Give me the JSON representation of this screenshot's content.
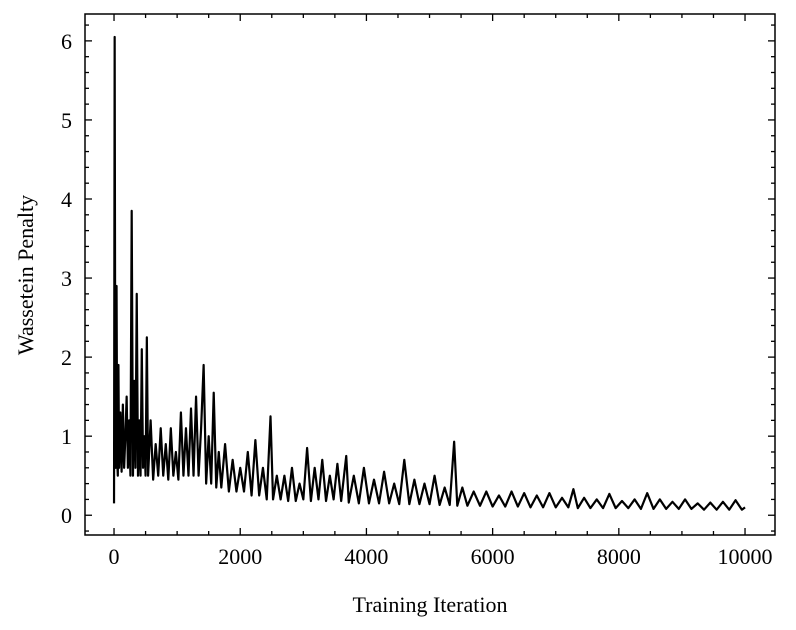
{
  "chart_data": {
    "type": "line",
    "xlabel": "Training Iteration",
    "ylabel": "Wassetein Penalty",
    "color": "#000000",
    "x": [
      0,
      10,
      20,
      30,
      40,
      50,
      60,
      70,
      80,
      100,
      120,
      140,
      160,
      180,
      200,
      220,
      240,
      260,
      280,
      300,
      320,
      340,
      360,
      380,
      400,
      420,
      440,
      460,
      480,
      500,
      520,
      540,
      580,
      620,
      660,
      700,
      740,
      780,
      820,
      860,
      900,
      940,
      980,
      1020,
      1060,
      1100,
      1140,
      1180,
      1220,
      1260,
      1300,
      1340,
      1380,
      1420,
      1460,
      1500,
      1540,
      1580,
      1620,
      1660,
      1700,
      1760,
      1820,
      1880,
      1940,
      2000,
      2060,
      2120,
      2180,
      2240,
      2300,
      2360,
      2420,
      2480,
      2520,
      2580,
      2640,
      2700,
      2760,
      2820,
      2880,
      2940,
      3000,
      3060,
      3120,
      3180,
      3240,
      3300,
      3360,
      3420,
      3480,
      3540,
      3600,
      3680,
      3720,
      3800,
      3880,
      3960,
      4040,
      4120,
      4200,
      4280,
      4360,
      4440,
      4520,
      4600,
      4680,
      4760,
      4840,
      4920,
      5000,
      5080,
      5160,
      5240,
      5320,
      5390,
      5440,
      5520,
      5600,
      5700,
      5800,
      5900,
      6000,
      6100,
      6200,
      6300,
      6400,
      6500,
      6600,
      6700,
      6800,
      6900,
      7000,
      7100,
      7200,
      7280,
      7350,
      7450,
      7550,
      7650,
      7750,
      7850,
      7950,
      8050,
      8150,
      8250,
      8350,
      8450,
      8550,
      8650,
      8750,
      8850,
      8950,
      9050,
      9150,
      9250,
      9350,
      9450,
      9550,
      9650,
      9750,
      9850,
      9950,
      10000
    ],
    "values": [
      0.15,
      6.05,
      1.2,
      0.6,
      2.9,
      0.7,
      0.5,
      1.9,
      0.6,
      1.3,
      0.55,
      1.4,
      0.6,
      1.0,
      1.5,
      0.6,
      1.2,
      0.5,
      3.85,
      0.5,
      1.7,
      0.6,
      2.8,
      0.5,
      1.2,
      0.5,
      2.1,
      0.6,
      1.0,
      0.5,
      2.25,
      0.5,
      1.2,
      0.45,
      0.9,
      0.5,
      1.1,
      0.5,
      0.9,
      0.45,
      1.1,
      0.5,
      0.8,
      0.45,
      1.3,
      0.5,
      1.1,
      0.5,
      1.35,
      0.5,
      1.5,
      0.5,
      1.1,
      1.9,
      0.4,
      1.0,
      0.4,
      1.55,
      0.35,
      0.8,
      0.35,
      0.9,
      0.3,
      0.7,
      0.3,
      0.6,
      0.3,
      0.8,
      0.25,
      0.95,
      0.25,
      0.6,
      0.2,
      1.25,
      0.2,
      0.5,
      0.2,
      0.5,
      0.18,
      0.6,
      0.18,
      0.4,
      0.2,
      0.85,
      0.18,
      0.6,
      0.2,
      0.7,
      0.18,
      0.5,
      0.2,
      0.65,
      0.18,
      0.75,
      0.16,
      0.5,
      0.15,
      0.6,
      0.15,
      0.45,
      0.15,
      0.55,
      0.15,
      0.4,
      0.14,
      0.7,
      0.14,
      0.45,
      0.14,
      0.4,
      0.14,
      0.5,
      0.13,
      0.35,
      0.13,
      0.93,
      0.12,
      0.35,
      0.12,
      0.3,
      0.12,
      0.3,
      0.11,
      0.25,
      0.11,
      0.3,
      0.11,
      0.28,
      0.1,
      0.25,
      0.1,
      0.28,
      0.1,
      0.22,
      0.1,
      0.33,
      0.09,
      0.22,
      0.09,
      0.2,
      0.09,
      0.27,
      0.09,
      0.18,
      0.09,
      0.2,
      0.08,
      0.28,
      0.08,
      0.2,
      0.08,
      0.17,
      0.08,
      0.2,
      0.08,
      0.15,
      0.07,
      0.16,
      0.07,
      0.17,
      0.07,
      0.19,
      0.07,
      0.1
    ],
    "xlim": [
      -460,
      10475
    ],
    "ylim": [
      -0.25,
      6.34
    ],
    "xticks": [
      0,
      2000,
      4000,
      6000,
      8000,
      10000
    ],
    "yticks": [
      0,
      1,
      2,
      3,
      4,
      5,
      6
    ],
    "xminorticks": [
      500,
      1000,
      1500,
      2500,
      3000,
      3500,
      4500,
      5000,
      5500,
      6500,
      7000,
      7500,
      8500,
      9000,
      9500,
      10500
    ],
    "yminorticks": [
      -0.2,
      0.2,
      0.4,
      0.6,
      0.8,
      1.2,
      1.4,
      1.6,
      1.8,
      2.2,
      2.4,
      2.6,
      2.8,
      3.2,
      3.4,
      3.6,
      3.8,
      4.2,
      4.4,
      4.6,
      4.8,
      5.2,
      5.4,
      5.6,
      5.8,
      6.2
    ],
    "grid": false
  }
}
